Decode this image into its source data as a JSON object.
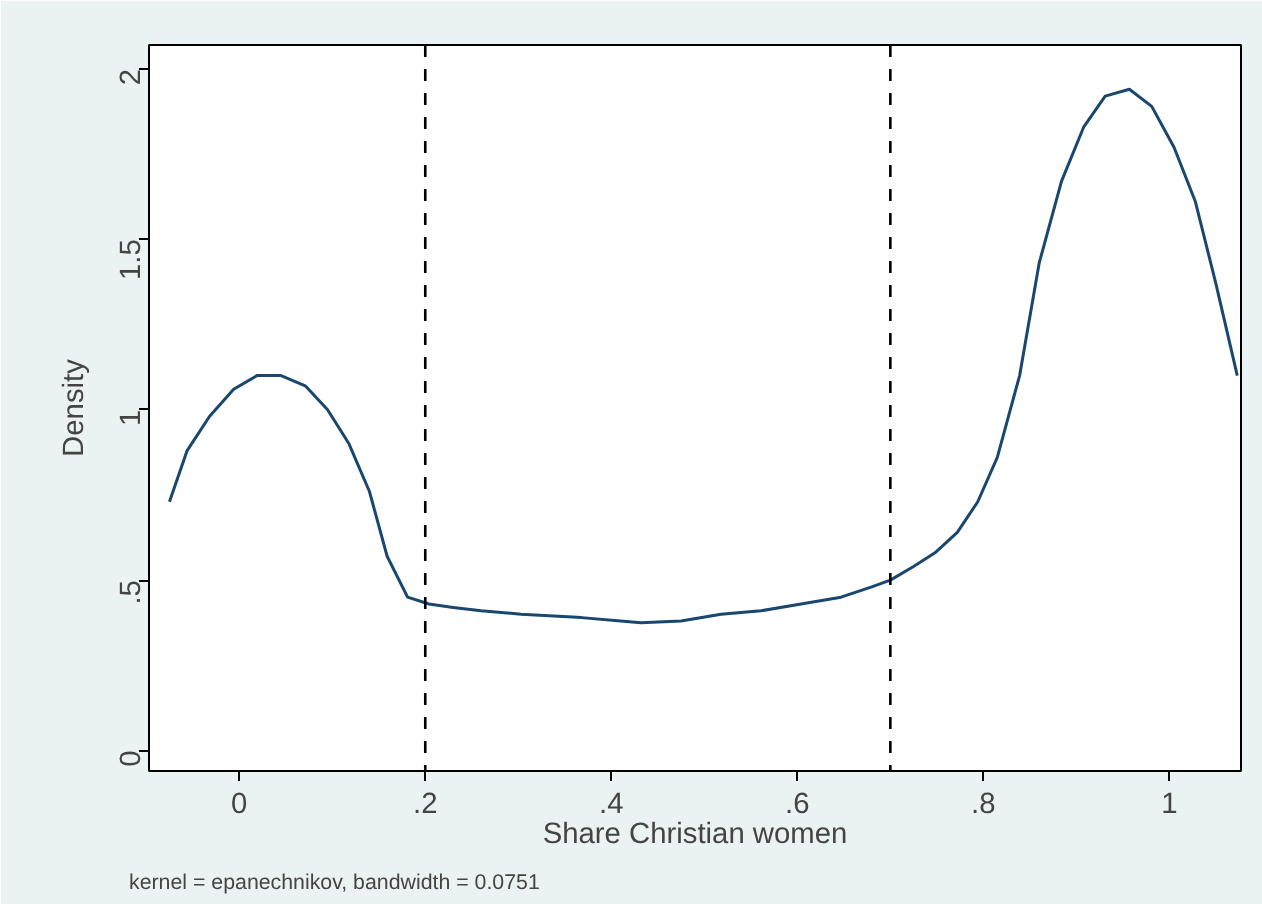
{
  "chart_data": {
    "type": "line",
    "xlabel": "Share Christian women",
    "ylabel": "Density",
    "annotations": [
      "kernel = epanechnikov, bandwidth = 0.0751"
    ],
    "x": [
      -0.075,
      -0.056,
      -0.032,
      -0.006,
      0.019,
      0.045,
      0.071,
      0.095,
      0.118,
      0.14,
      0.159,
      0.181,
      0.204,
      0.23,
      0.26,
      0.303,
      0.368,
      0.41,
      0.432,
      0.475,
      0.518,
      0.561,
      0.604,
      0.647,
      0.68,
      0.7,
      0.725,
      0.748,
      0.772,
      0.794,
      0.815,
      0.839,
      0.86,
      0.884,
      0.908,
      0.931,
      0.957,
      0.981,
      1.005,
      1.028,
      1.05,
      1.073
    ],
    "series": [
      {
        "color": "#1a476f",
        "values": [
          0.73,
          0.88,
          0.98,
          1.06,
          1.1,
          1.1,
          1.07,
          1.0,
          0.9,
          0.76,
          0.57,
          0.45,
          0.43,
          0.42,
          0.41,
          0.4,
          0.39,
          0.38,
          0.375,
          0.38,
          0.4,
          0.41,
          0.43,
          0.45,
          0.48,
          0.5,
          0.54,
          0.58,
          0.64,
          0.73,
          0.86,
          1.1,
          1.43,
          1.67,
          1.83,
          1.92,
          1.94,
          1.89,
          1.77,
          1.61,
          1.37,
          1.1
        ]
      }
    ],
    "xlim": [
      -0.097,
      1.077
    ],
    "ylim": [
      -0.06,
      2.07
    ],
    "xticks": [
      {
        "value": 0,
        "label": "0"
      },
      {
        "value": 0.2,
        "label": ".2"
      },
      {
        "value": 0.4,
        "label": ".4"
      },
      {
        "value": 0.6,
        "label": ".6"
      },
      {
        "value": 0.8,
        "label": ".8"
      },
      {
        "value": 1,
        "label": "1"
      }
    ],
    "yticks": [
      {
        "value": 0,
        "label": "0"
      },
      {
        "value": 0.5,
        "label": ".5"
      },
      {
        "value": 1,
        "label": "1"
      },
      {
        "value": 1.5,
        "label": "1.5"
      },
      {
        "value": 2,
        "label": "2"
      }
    ],
    "ref_lines": [
      {
        "axis": "x",
        "value": 0.2,
        "color": "#000000",
        "line_style": "dashed"
      },
      {
        "axis": "x",
        "value": 0.7,
        "color": "#000000",
        "line_style": "dashed"
      }
    ],
    "grid": false,
    "line_style": "solid",
    "marker": "none"
  }
}
